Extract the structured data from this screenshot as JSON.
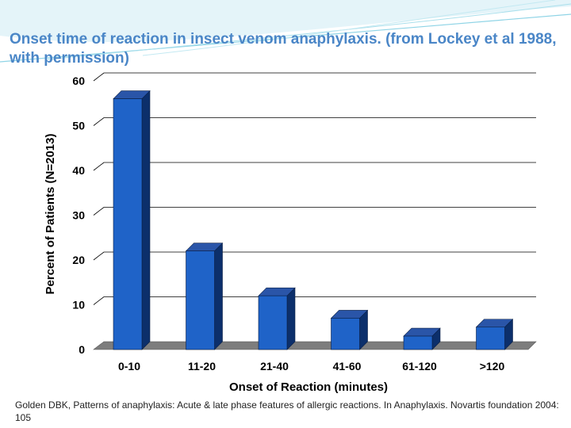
{
  "slide": {
    "title": "Onset time of reaction in insect venom anaphylaxis. (from Lockey et al 1988, with permission)",
    "caption": "Golden DBK, Patterns of anaphylaxis: Acute & late phase features of allergic reactions. In Anaphylaxis. Novartis foundation 2004: 105"
  },
  "colors": {
    "title": "#4a86c7",
    "bar_front": "#1f63c8",
    "bar_side": "#0c2f6b",
    "bar_top": "#2a55a8",
    "floor": "#7d7d7d",
    "wave": "#8fd4e6"
  },
  "chart_data": {
    "type": "bar",
    "categories": [
      "0-10",
      "11-20",
      "21-40",
      "41-60",
      "61-120",
      ">120"
    ],
    "values": [
      56,
      22,
      12,
      7,
      3,
      5
    ],
    "xlabel": "Onset of Reaction (minutes)",
    "ylabel": "Percent of Patients (N=2013)",
    "ylim": [
      0,
      60
    ],
    "yticks": [
      0,
      10,
      20,
      30,
      40,
      50,
      60
    ],
    "grid": true,
    "style": "3d"
  }
}
